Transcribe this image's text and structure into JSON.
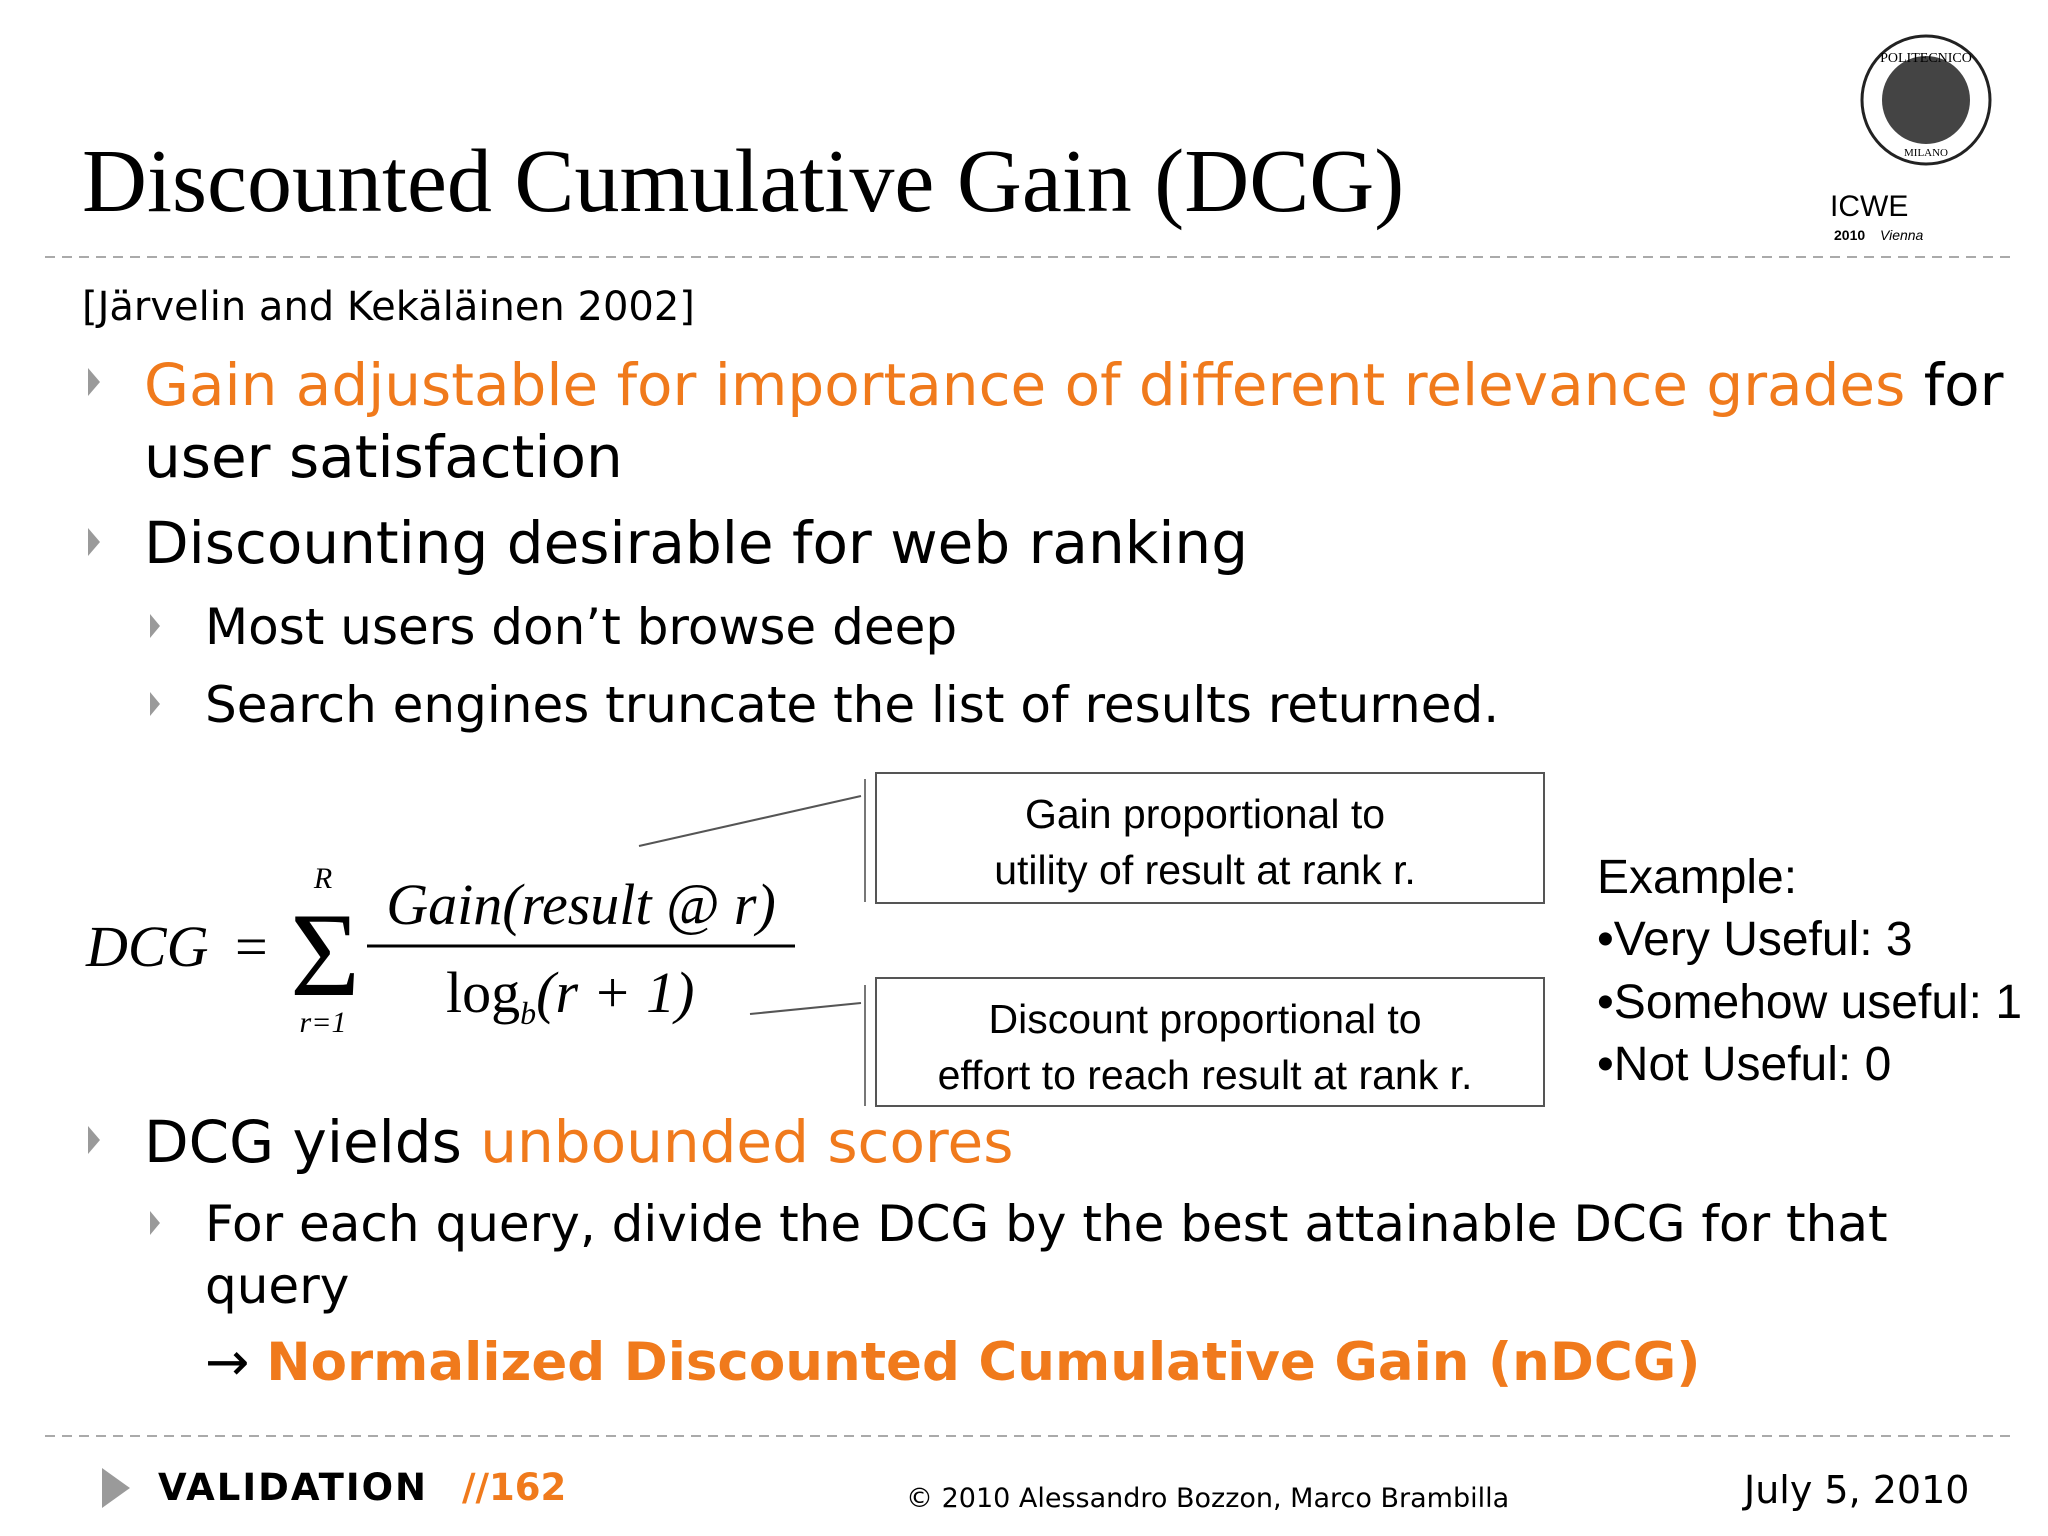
{
  "header": {
    "title": "Discounted Cumulative Gain (DCG)",
    "citation": "[Järvelin and Kekäläinen 2002]"
  },
  "logo": {
    "name": "POLITECNICO",
    "city": "MILANO",
    "conference": "ICWE",
    "year": "2010",
    "place": "Vienna"
  },
  "bullets": [
    {
      "highlight": "Gain adjustable for importance of different relevance grades",
      "tail": "for",
      "continuation": "user satisfaction"
    },
    {
      "text": "Discounting desirable for web ranking",
      "sub": [
        "Most users don’t browse deep",
        "Search engines truncate the list of results returned."
      ]
    },
    {
      "text": "DCG yields",
      "highlight": "unbounded scores",
      "sub": [
        "For each query, divide the DCG by the best attainable DCG for that",
        "query"
      ],
      "arrow": "→",
      "result": "Normalized Discounted Cumulative Gain (nDCG)"
    }
  ],
  "formula": {
    "lhs": "DCG",
    "eq": "=",
    "sigma": "Σ",
    "upper": "R",
    "lower": "r=1",
    "numerator": "Gain(result @ r)",
    "log": "log",
    "base": "b",
    "arg": "(r + 1)"
  },
  "callouts": [
    {
      "line1": "Gain proportional to",
      "line2": "utility of result at rank r."
    },
    {
      "line1": "Discount proportional to",
      "line2": "effort to reach result at rank r."
    }
  ],
  "example": {
    "title": "Example:",
    "items": [
      "•Very Useful: 3",
      "•Somehow useful: 1",
      "•Not Useful: 0"
    ]
  },
  "footer": {
    "section": "VALIDATION",
    "page": "//162",
    "copyright": "© 2010 Alessandro Bozzon, Marco Brambilla",
    "date": "July 5, 2010"
  }
}
